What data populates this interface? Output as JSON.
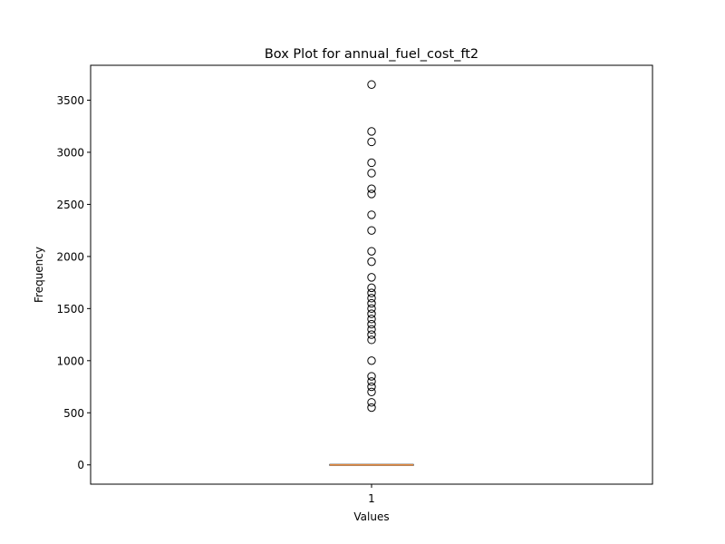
{
  "chart_data": {
    "type": "box",
    "title": "Box Plot for annual_fuel_cost_ft2",
    "xlabel": "Values",
    "ylabel": "Frequency",
    "categories": [
      "1"
    ],
    "ylim": [
      -185,
      3835
    ],
    "yticks": [
      0,
      500,
      1000,
      1500,
      2000,
      2500,
      3000,
      3500
    ],
    "ytick_labels": [
      "0",
      "500",
      "1000",
      "1500",
      "2000",
      "2500",
      "3000",
      "3500"
    ],
    "box": {
      "min": 0,
      "q1": 0,
      "median": 0,
      "q3": 0,
      "max": 0
    },
    "outliers": [
      550,
      600,
      700,
      750,
      800,
      850,
      1000,
      1200,
      1250,
      1300,
      1350,
      1400,
      1450,
      1500,
      1550,
      1600,
      1650,
      1700,
      1800,
      1950,
      2050,
      2250,
      2400,
      2600,
      2650,
      2800,
      2900,
      3100,
      3200,
      3650
    ],
    "colors": {
      "median": "#e3873a",
      "box": "#000000",
      "outlier": "#000000"
    }
  }
}
